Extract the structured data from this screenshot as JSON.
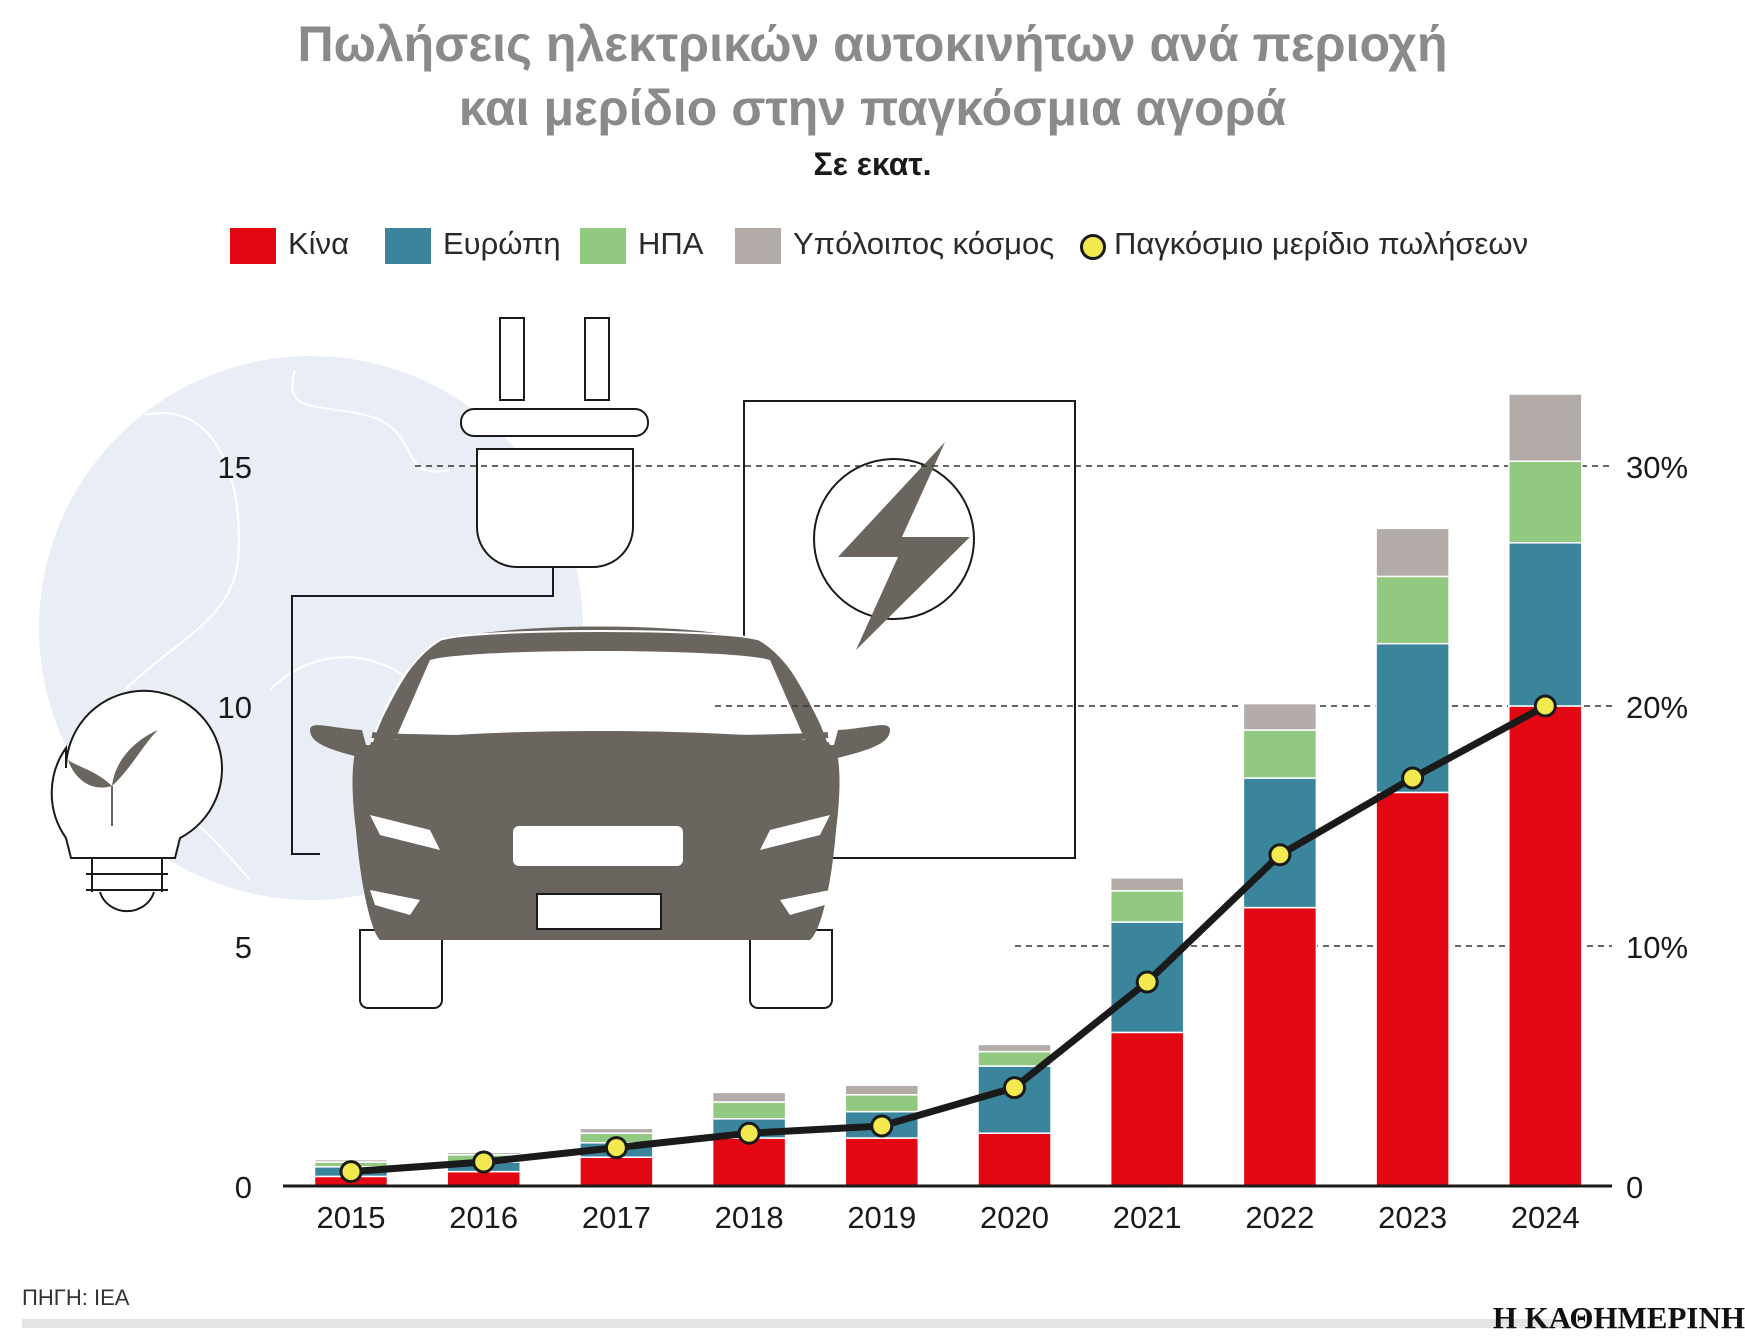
{
  "header": {
    "title_line1": "Πωλήσεις ηλεκτρικών αυτοκινήτων ανά περιοχή",
    "title_line2": "και μερίδιο στην παγκόσμια αγορά",
    "subtitle": "Σε εκατ."
  },
  "legend": {
    "items": [
      {
        "label": "Κίνα",
        "color": "#e30613"
      },
      {
        "label": "Ευρώπη",
        "color": "#3a859c"
      },
      {
        "label": "ΗΠΑ",
        "color": "#90c97f"
      },
      {
        "label": "Υπόλοιπος κόσμος",
        "color": "#b3aba8"
      },
      {
        "label": "Παγκόσμιο μερίδιο πωλήσεων",
        "color": "#f2e94e"
      }
    ]
  },
  "colors": {
    "line": "#1a1a1a",
    "dot_fill": "#f2e94e",
    "illustration_gray": "#6b6560",
    "globe": "#e9edf5",
    "grid": "#333333"
  },
  "icons": [
    "globe-icon",
    "plug-icon",
    "charger-icon",
    "lightning-icon",
    "car-icon",
    "lightbulb-leaf-icon"
  ],
  "chart_data": {
    "type": "bar",
    "stacked": true,
    "categories": [
      "2015",
      "2016",
      "2017",
      "2018",
      "2019",
      "2020",
      "2021",
      "2022",
      "2023",
      "2024"
    ],
    "series": [
      {
        "name": "Κίνα",
        "values": [
          0.2,
          0.3,
          0.6,
          1.0,
          1.0,
          1.1,
          3.2,
          5.8,
          8.2,
          10.0
        ]
      },
      {
        "name": "Ευρώπη",
        "values": [
          0.2,
          0.2,
          0.3,
          0.4,
          0.55,
          1.4,
          2.3,
          2.7,
          3.1,
          3.4
        ]
      },
      {
        "name": "ΗΠΑ",
        "values": [
          0.1,
          0.15,
          0.2,
          0.35,
          0.35,
          0.3,
          0.65,
          1.0,
          1.4,
          1.7
        ]
      },
      {
        "name": "Υπόλοιπος κόσμος",
        "values": [
          0.05,
          0.05,
          0.1,
          0.2,
          0.2,
          0.15,
          0.27,
          0.55,
          1.0,
          1.4
        ]
      }
    ],
    "line_series": {
      "name": "Παγκόσμιο μερίδιο πωλήσεων",
      "values": [
        0.6,
        1.0,
        1.6,
        2.2,
        2.5,
        4.1,
        8.5,
        13.8,
        17.0,
        20.0
      ],
      "unit": "%"
    },
    "y_left": {
      "ylim": [
        0,
        15
      ],
      "ticks": [
        0,
        5,
        10,
        15
      ]
    },
    "y_right": {
      "ylim": [
        0,
        30
      ],
      "ticks": [
        "0",
        "10%",
        "20%",
        "30%"
      ]
    },
    "grid": "dashed reference lines at 5, 10, 15"
  },
  "footer": {
    "source": "ΠΗΓΗ: IEA",
    "brand": "Η ΚΑΘΗΜΕΡΙΝΗ"
  }
}
